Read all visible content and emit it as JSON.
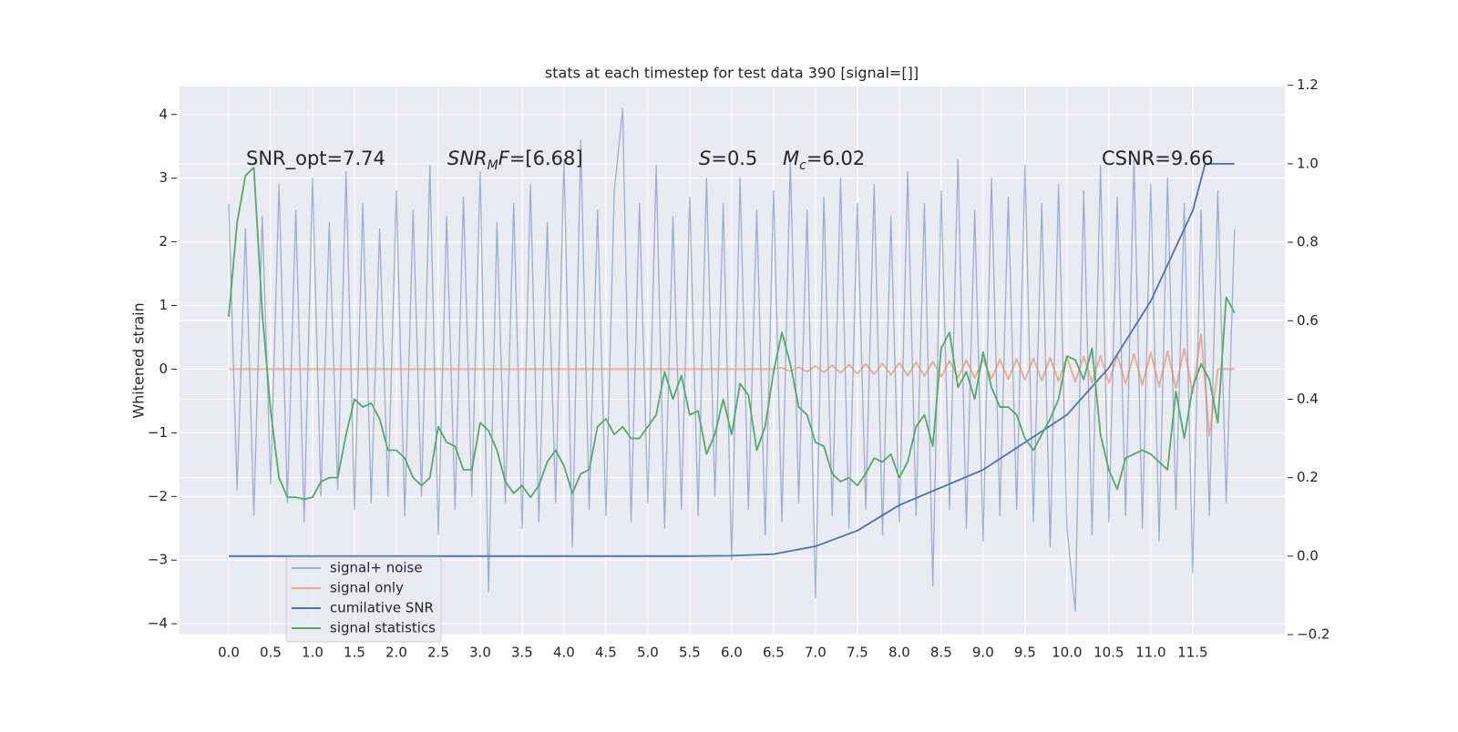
{
  "chart_data": {
    "type": "line",
    "title": "stats at each timestep for test data 390 [signal=[]]",
    "ylabel": "Whitened strain",
    "xlim": [
      -0.587,
      12.6
    ],
    "ylim": [
      -4.17,
      4.44
    ],
    "y2lim": [
      -0.2,
      1.197
    ],
    "grid": true,
    "legend": "lower left",
    "xticks": [
      {
        "value": 0,
        "label": "0.0"
      },
      0.5,
      {
        "value": 1,
        "label": "1.0"
      },
      1.5,
      {
        "value": 2,
        "label": "2.0"
      },
      2.5,
      {
        "value": 3,
        "label": "3.0"
      },
      3.5,
      {
        "value": 4,
        "label": "4.0"
      },
      4.5,
      {
        "value": 5,
        "label": "5.0"
      },
      5.5,
      {
        "value": 6,
        "label": "6.0"
      },
      6.5,
      {
        "value": 7,
        "label": "7.0"
      },
      7.5,
      {
        "value": 8,
        "label": "8.0"
      },
      8.5,
      {
        "value": 9,
        "label": "9.0"
      },
      9.5,
      {
        "value": 10,
        "label": "10.0"
      },
      10.5,
      {
        "value": 11,
        "label": "11.0"
      },
      11.5
    ],
    "yticks": [
      {
        "value": -4,
        "label": "−4"
      },
      {
        "value": -3,
        "label": "−3"
      },
      {
        "value": -2,
        "label": "−2"
      },
      {
        "value": -1,
        "label": "−1"
      },
      0,
      1,
      2,
      3,
      4
    ],
    "y2ticks": [
      {
        "value": -0.2,
        "label": "−0.2"
      },
      {
        "value": 0,
        "label": "0.0"
      },
      0.2,
      0.4,
      0.6,
      0.8,
      {
        "value": 1,
        "label": "1.0"
      },
      1.2
    ],
    "annotations": [
      [
        {
          "text": "SNR_opt=7.74",
          "style": "normal"
        }
      ],
      [
        {
          "text": "SNR",
          "style": "italic"
        },
        {
          "text": "M",
          "style": "sub"
        },
        {
          "text": "F",
          "style": "italic"
        },
        {
          "text": "=[6.68]",
          "style": "normal"
        }
      ],
      [
        {
          "text": "S",
          "style": "italic"
        },
        {
          "text": "=0.5",
          "style": "normal"
        }
      ],
      [
        {
          "text": "M",
          "style": "italic"
        },
        {
          "text": "c",
          "style": "sub"
        },
        {
          "text": "=6.02",
          "style": "normal"
        }
      ],
      [
        {
          "text": "CSNR=9.66",
          "style": "normal"
        }
      ]
    ],
    "x": [
      0,
      0.1,
      0.2,
      0.3,
      0.4,
      0.5,
      0.6,
      0.7,
      0.8,
      0.9,
      1,
      1.1,
      1.2,
      1.3,
      1.4,
      1.5,
      1.6,
      1.7,
      1.8,
      1.9,
      2,
      2.1,
      2.2,
      2.3,
      2.4,
      2.5,
      2.6,
      2.7,
      2.8,
      2.9,
      3,
      3.1,
      3.2,
      3.3,
      3.4,
      3.5,
      3.6,
      3.7,
      3.8,
      3.9,
      4,
      4.1,
      4.2,
      4.3,
      4.4,
      4.5,
      4.6,
      4.7,
      4.8,
      4.9,
      5,
      5.1,
      5.2,
      5.3,
      5.4,
      5.5,
      5.6,
      5.7,
      5.8,
      5.9,
      6,
      6.1,
      6.2,
      6.3,
      6.4,
      6.5,
      6.6,
      6.7,
      6.8,
      6.9,
      7,
      7.1,
      7.2,
      7.3,
      7.4,
      7.5,
      7.6,
      7.7,
      7.8,
      7.9,
      8,
      8.1,
      8.2,
      8.3,
      8.4,
      8.5,
      8.6,
      8.7,
      8.8,
      8.9,
      9,
      9.1,
      9.2,
      9.3,
      9.4,
      9.5,
      9.6,
      9.7,
      9.8,
      9.9,
      10,
      10.1,
      10.2,
      10.3,
      10.4,
      10.5,
      10.6,
      10.7,
      10.8,
      10.9,
      11,
      11.1,
      11.2,
      11.3,
      11.4,
      11.5,
      11.6,
      11.7,
      11.8,
      11.9,
      12
    ],
    "series": [
      {
        "name": "signal+ noise",
        "color": "#4c72b0",
        "alpha": 0.5,
        "axis": "y",
        "values": [
          2.6,
          -1.9,
          2.2,
          -2.3,
          2.4,
          -1.8,
          2.9,
          -2.1,
          2.5,
          -2.4,
          3.0,
          -2.0,
          2.3,
          -1.9,
          3.1,
          -2.2,
          2.6,
          -2.1,
          2.2,
          -2.0,
          2.8,
          -2.3,
          2.5,
          -2.0,
          3.2,
          -2.6,
          2.4,
          -2.2,
          2.7,
          -2.0,
          3.1,
          -3.5,
          2.3,
          -2.1,
          2.6,
          -2.5,
          2.9,
          -2.4,
          2.3,
          -2.1,
          3.3,
          -2.8,
          3.6,
          -2.2,
          2.5,
          -2.3,
          2.8,
          4.1,
          -2.4,
          2.6,
          -2.1,
          3.2,
          -2.5,
          2.4,
          -2.2,
          2.7,
          -2.3,
          3.0,
          -2.0,
          2.6,
          -3.0,
          3.0,
          -2.2,
          2.5,
          -2.6,
          2.8,
          -2.4,
          3.3,
          -2.1,
          2.5,
          -3.6,
          2.7,
          -2.3,
          3.0,
          -2.5,
          2.6,
          -2.2,
          2.9,
          -2.6,
          2.4,
          -2.4,
          3.1,
          -2.3,
          2.6,
          -3.4,
          2.8,
          -2.2,
          3.3,
          -2.5,
          2.5,
          -2.7,
          3.0,
          -2.3,
          2.7,
          -2.2,
          3.2,
          -2.4,
          2.6,
          -2.8,
          2.9,
          -2.5,
          -3.8,
          2.8,
          -2.6,
          3.2,
          -2.4,
          2.7,
          -2.3,
          3.3,
          -2.5,
          2.9,
          -2.7,
          3.0,
          -2.2,
          2.6,
          -3.2,
          2.5,
          -2.3,
          2.8,
          -2.1,
          2.2
        ]
      },
      {
        "name": "signal only",
        "color": "#dd8452",
        "alpha": 0.6,
        "axis": "y",
        "values": [
          0,
          0,
          0,
          0,
          0,
          0,
          0,
          0,
          0,
          0,
          0,
          0,
          0,
          0,
          0,
          0,
          0,
          0,
          0,
          0,
          0,
          0,
          0,
          0,
          0,
          0,
          0,
          0,
          0,
          0,
          0,
          0,
          0,
          0,
          0,
          0,
          0,
          0,
          0,
          0,
          0,
          0,
          0,
          0,
          0,
          0,
          0,
          0,
          0,
          0,
          0,
          0,
          0,
          0,
          0,
          0,
          0,
          0,
          0,
          0,
          0,
          0,
          0,
          0,
          0,
          0,
          0.02,
          -0.03,
          0.03,
          -0.04,
          0.05,
          -0.05,
          0.06,
          -0.06,
          0.07,
          -0.07,
          0.08,
          -0.08,
          0.09,
          -0.09,
          0.1,
          -0.1,
          0.11,
          -0.11,
          0.12,
          -0.12,
          0.13,
          -0.13,
          0.14,
          -0.14,
          0.15,
          -0.15,
          0.15,
          -0.16,
          0.16,
          -0.17,
          0.17,
          -0.18,
          0.18,
          -0.19,
          0.19,
          -0.2,
          0.2,
          -0.21,
          0.21,
          -0.22,
          0.22,
          -0.23,
          0.24,
          -0.25,
          0.26,
          -0.27,
          0.28,
          -0.3,
          0.33,
          -0.38,
          0.55,
          -1.05,
          0,
          0,
          0
        ]
      },
      {
        "name": "cumilative SNR",
        "color": "#4c72b0",
        "alpha": 1,
        "axis": "y2",
        "x": [
          0,
          5.5,
          6.0,
          6.5,
          7.0,
          7.5,
          8.0,
          8.5,
          9.0,
          9.5,
          10.0,
          10.5,
          11.0,
          11.5,
          11.65,
          12.0
        ],
        "values": [
          0,
          0,
          0.001,
          0.005,
          0.025,
          0.065,
          0.13,
          0.175,
          0.22,
          0.29,
          0.36,
          0.48,
          0.65,
          0.88,
          1.0,
          1.0
        ]
      },
      {
        "name": "signal statistics",
        "color": "#55a868",
        "alpha": 1,
        "axis": "y2",
        "values": [
          0.61,
          0.85,
          0.97,
          0.99,
          0.62,
          0.37,
          0.2,
          0.15,
          0.15,
          0.145,
          0.15,
          0.19,
          0.2,
          0.2,
          0.31,
          0.4,
          0.38,
          0.39,
          0.35,
          0.27,
          0.27,
          0.25,
          0.2,
          0.18,
          0.2,
          0.33,
          0.29,
          0.28,
          0.22,
          0.22,
          0.34,
          0.32,
          0.27,
          0.19,
          0.16,
          0.18,
          0.15,
          0.18,
          0.24,
          0.27,
          0.23,
          0.16,
          0.21,
          0.22,
          0.33,
          0.35,
          0.31,
          0.33,
          0.3,
          0.3,
          0.33,
          0.36,
          0.47,
          0.4,
          0.46,
          0.36,
          0.37,
          0.26,
          0.31,
          0.4,
          0.31,
          0.44,
          0.41,
          0.27,
          0.33,
          0.47,
          0.57,
          0.49,
          0.38,
          0.36,
          0.29,
          0.28,
          0.21,
          0.19,
          0.2,
          0.18,
          0.21,
          0.25,
          0.24,
          0.26,
          0.2,
          0.24,
          0.33,
          0.36,
          0.28,
          0.53,
          0.57,
          0.43,
          0.47,
          0.4,
          0.52,
          0.43,
          0.38,
          0.38,
          0.36,
          0.3,
          0.27,
          0.31,
          0.35,
          0.4,
          0.51,
          0.5,
          0.45,
          0.53,
          0.31,
          0.22,
          0.17,
          0.25,
          0.26,
          0.27,
          0.26,
          0.24,
          0.22,
          0.42,
          0.3,
          0.43,
          0.49,
          0.45,
          0.34,
          0.66,
          0.62
        ]
      }
    ]
  }
}
